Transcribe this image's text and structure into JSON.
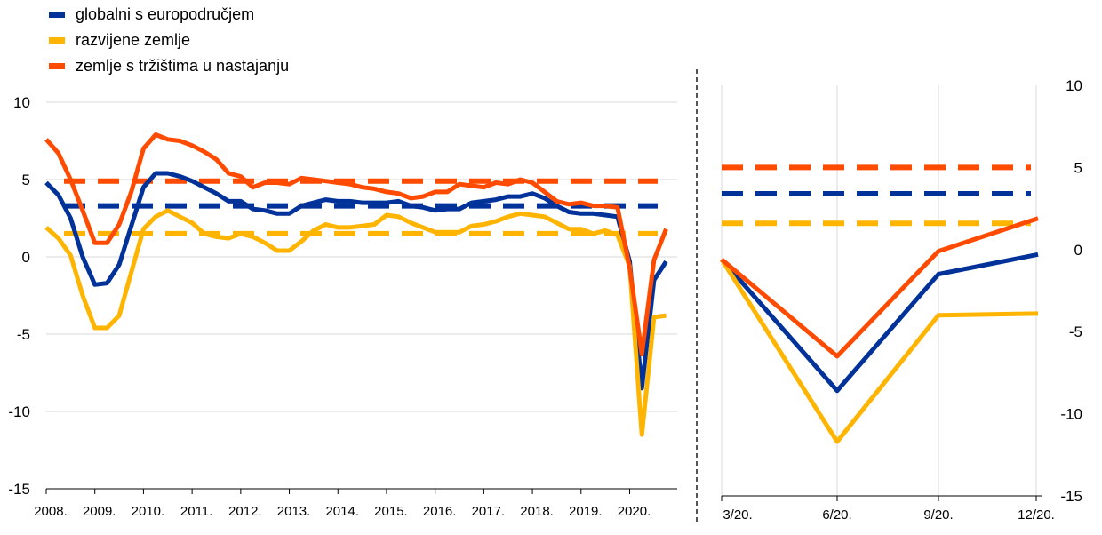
{
  "chart_data": [
    {
      "type": "line",
      "x_ticks": [
        "2008.",
        "2009.",
        "2010.",
        "2011.",
        "2012.",
        "2013.",
        "2014.",
        "2015.",
        "2016.",
        "2017.",
        "2018.",
        "2019.",
        "2020."
      ],
      "y_ticks": [
        "10",
        "5",
        "0",
        "-5",
        "-10",
        "-15"
      ],
      "ylim": [
        -15,
        10
      ],
      "grid": "horizontal",
      "legend_position": "top-left",
      "x_start": 2008.0,
      "x_end": 2020.85,
      "series": [
        {
          "name": "globalni s europodručjem",
          "color": "#003299",
          "points": [
            [
              2008.0,
              4.8
            ],
            [
              2008.25,
              4.0
            ],
            [
              2008.5,
              2.5
            ],
            [
              2008.75,
              0.0
            ],
            [
              2009.0,
              -1.8
            ],
            [
              2009.25,
              -1.7
            ],
            [
              2009.5,
              -0.5
            ],
            [
              2009.75,
              2.0
            ],
            [
              2010.0,
              4.5
            ],
            [
              2010.25,
              5.4
            ],
            [
              2010.5,
              5.4
            ],
            [
              2010.75,
              5.2
            ],
            [
              2011.0,
              4.9
            ],
            [
              2011.25,
              4.5
            ],
            [
              2011.5,
              4.1
            ],
            [
              2011.75,
              3.6
            ],
            [
              2012.0,
              3.6
            ],
            [
              2012.25,
              3.1
            ],
            [
              2012.5,
              3.0
            ],
            [
              2012.75,
              2.8
            ],
            [
              2013.0,
              2.8
            ],
            [
              2013.25,
              3.3
            ],
            [
              2013.5,
              3.5
            ],
            [
              2013.75,
              3.7
            ],
            [
              2014.0,
              3.6
            ],
            [
              2014.25,
              3.6
            ],
            [
              2014.5,
              3.5
            ],
            [
              2014.75,
              3.5
            ],
            [
              2015.0,
              3.5
            ],
            [
              2015.25,
              3.6
            ],
            [
              2015.5,
              3.3
            ],
            [
              2015.75,
              3.2
            ],
            [
              2016.0,
              3.0
            ],
            [
              2016.25,
              3.1
            ],
            [
              2016.5,
              3.1
            ],
            [
              2016.75,
              3.5
            ],
            [
              2017.0,
              3.6
            ],
            [
              2017.25,
              3.7
            ],
            [
              2017.5,
              3.9
            ],
            [
              2017.75,
              3.9
            ],
            [
              2018.0,
              4.1
            ],
            [
              2018.25,
              3.8
            ],
            [
              2018.5,
              3.3
            ],
            [
              2018.75,
              2.9
            ],
            [
              2019.0,
              2.8
            ],
            [
              2019.25,
              2.8
            ],
            [
              2019.5,
              2.7
            ],
            [
              2019.75,
              2.6
            ],
            [
              2020.0,
              -0.3
            ],
            [
              2020.25,
              -8.5
            ],
            [
              2020.5,
              -1.5
            ],
            [
              2020.75,
              -0.3
            ]
          ]
        },
        {
          "name": "razvijene zemlje",
          "color": "#ffb400",
          "points": [
            [
              2008.0,
              1.9
            ],
            [
              2008.25,
              1.2
            ],
            [
              2008.5,
              0.1
            ],
            [
              2008.75,
              -2.5
            ],
            [
              2009.0,
              -4.6
            ],
            [
              2009.25,
              -4.6
            ],
            [
              2009.5,
              -3.8
            ],
            [
              2009.75,
              -1.0
            ],
            [
              2010.0,
              1.8
            ],
            [
              2010.25,
              2.6
            ],
            [
              2010.5,
              3.0
            ],
            [
              2010.75,
              2.6
            ],
            [
              2011.0,
              2.2
            ],
            [
              2011.25,
              1.5
            ],
            [
              2011.5,
              1.3
            ],
            [
              2011.75,
              1.2
            ],
            [
              2012.0,
              1.5
            ],
            [
              2012.25,
              1.3
            ],
            [
              2012.5,
              0.9
            ],
            [
              2012.75,
              0.4
            ],
            [
              2013.0,
              0.4
            ],
            [
              2013.25,
              1.0
            ],
            [
              2013.5,
              1.7
            ],
            [
              2013.75,
              2.1
            ],
            [
              2014.0,
              1.9
            ],
            [
              2014.25,
              1.9
            ],
            [
              2014.5,
              2.0
            ],
            [
              2014.75,
              2.1
            ],
            [
              2015.0,
              2.7
            ],
            [
              2015.25,
              2.6
            ],
            [
              2015.5,
              2.2
            ],
            [
              2015.75,
              1.9
            ],
            [
              2016.0,
              1.6
            ],
            [
              2016.25,
              1.6
            ],
            [
              2016.5,
              1.6
            ],
            [
              2016.75,
              2.0
            ],
            [
              2017.0,
              2.1
            ],
            [
              2017.25,
              2.3
            ],
            [
              2017.5,
              2.6
            ],
            [
              2017.75,
              2.8
            ],
            [
              2018.0,
              2.7
            ],
            [
              2018.25,
              2.6
            ],
            [
              2018.5,
              2.2
            ],
            [
              2018.75,
              1.8
            ],
            [
              2019.0,
              1.8
            ],
            [
              2019.25,
              1.5
            ],
            [
              2019.5,
              1.7
            ],
            [
              2019.75,
              1.4
            ],
            [
              2020.0,
              -0.6
            ],
            [
              2020.25,
              -11.5
            ],
            [
              2020.5,
              -3.9
            ],
            [
              2020.75,
              -3.8
            ]
          ]
        },
        {
          "name": "zemlje s tržištima u nastajanju",
          "color": "#ff4b00",
          "points": [
            [
              2008.0,
              7.6
            ],
            [
              2008.25,
              6.7
            ],
            [
              2008.5,
              5.0
            ],
            [
              2008.75,
              3.0
            ],
            [
              2009.0,
              0.9
            ],
            [
              2009.25,
              0.9
            ],
            [
              2009.5,
              2.1
            ],
            [
              2009.75,
              4.2
            ],
            [
              2010.0,
              7.0
            ],
            [
              2010.25,
              7.9
            ],
            [
              2010.5,
              7.6
            ],
            [
              2010.75,
              7.5
            ],
            [
              2011.0,
              7.2
            ],
            [
              2011.25,
              6.8
            ],
            [
              2011.5,
              6.3
            ],
            [
              2011.75,
              5.4
            ],
            [
              2012.0,
              5.2
            ],
            [
              2012.25,
              4.5
            ],
            [
              2012.5,
              4.8
            ],
            [
              2012.75,
              4.8
            ],
            [
              2013.0,
              4.7
            ],
            [
              2013.25,
              5.1
            ],
            [
              2013.5,
              5.0
            ],
            [
              2013.75,
              4.9
            ],
            [
              2014.0,
              4.8
            ],
            [
              2014.25,
              4.7
            ],
            [
              2014.5,
              4.5
            ],
            [
              2014.75,
              4.4
            ],
            [
              2015.0,
              4.2
            ],
            [
              2015.25,
              4.1
            ],
            [
              2015.5,
              3.8
            ],
            [
              2015.75,
              3.9
            ],
            [
              2016.0,
              4.2
            ],
            [
              2016.25,
              4.2
            ],
            [
              2016.5,
              4.7
            ],
            [
              2016.75,
              4.6
            ],
            [
              2017.0,
              4.5
            ],
            [
              2017.25,
              4.8
            ],
            [
              2017.5,
              4.7
            ],
            [
              2017.75,
              5.0
            ],
            [
              2018.0,
              4.8
            ],
            [
              2018.25,
              4.2
            ],
            [
              2018.5,
              3.6
            ],
            [
              2018.75,
              3.4
            ],
            [
              2019.0,
              3.5
            ],
            [
              2019.25,
              3.3
            ],
            [
              2019.5,
              3.3
            ],
            [
              2019.75,
              3.2
            ],
            [
              2020.0,
              -0.7
            ],
            [
              2020.25,
              -6.3
            ],
            [
              2020.5,
              -0.2
            ],
            [
              2020.75,
              1.8
            ]
          ]
        }
      ],
      "reference_lines": [
        {
          "series": "globalni s europodručjem",
          "value": 3.3
        },
        {
          "series": "razvijene zemlje",
          "value": 1.5
        },
        {
          "series": "zemlje s tržištima u nastajanju",
          "value": 4.9
        }
      ]
    },
    {
      "type": "line",
      "categories": [
        "3/20.",
        "6/20.",
        "9/20.",
        "12/20."
      ],
      "y_ticks": [
        "10",
        "5",
        "0",
        "-5",
        "-10",
        "-15"
      ],
      "ylim": [
        -15,
        10
      ],
      "grid": "vertical",
      "series": [
        {
          "name": "globalni s europodručjem",
          "color": "#003299",
          "values": [
            -0.6,
            -8.6,
            -1.5,
            -0.3
          ]
        },
        {
          "name": "razvijene zemlje",
          "color": "#ffb400",
          "values": [
            -0.6,
            -11.7,
            -4.0,
            -3.9
          ]
        },
        {
          "name": "zemlje s tržištima u nastajanju",
          "color": "#ff4b00",
          "values": [
            -0.6,
            -6.5,
            -0.1,
            1.9
          ]
        }
      ],
      "reference_lines": [
        {
          "series": "globalni s europodručjem",
          "value": 3.4
        },
        {
          "series": "razvijene zemlje",
          "value": 1.6
        },
        {
          "series": "zemlje s tržištima u nastajanju",
          "value": 5.0
        }
      ]
    }
  ]
}
